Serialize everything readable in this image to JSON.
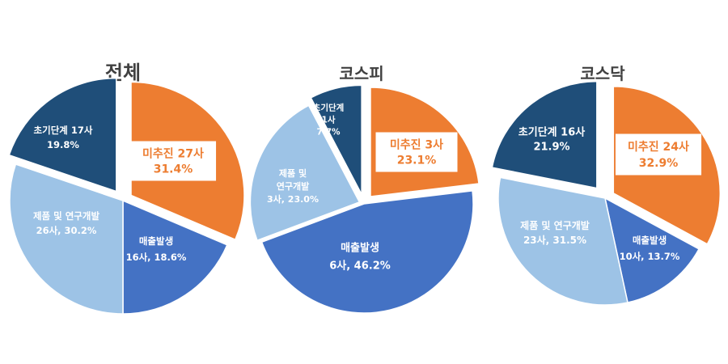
{
  "colors": {
    "미추진": "#ED7D31",
    "매출발생": "#4472C4",
    "제품 및 연구개발": "#9DC3E6",
    "초기단계": "#1F4E79"
  },
  "chart_data": [
    {
      "type": "pie",
      "title": "전체",
      "slices": [
        {
          "name": "미추진",
          "count": 27,
          "percent": 31.4,
          "label_lines": [
            "미추진 27사",
            "31.4%"
          ]
        },
        {
          "name": "매출발생",
          "count": 16,
          "percent": 18.6,
          "label_lines": [
            "매출발생",
            "16사, 18.6%"
          ]
        },
        {
          "name": "제품 및 연구개발",
          "count": 26,
          "percent": 30.2,
          "label_lines": [
            "제품 및 연구개발",
            "26사, 30.2%"
          ]
        },
        {
          "name": "초기단계",
          "count": 17,
          "percent": 19.8,
          "label_lines": [
            "초기단계 17사",
            "19.8%"
          ]
        }
      ]
    },
    {
      "type": "pie",
      "title": "코스피",
      "slices": [
        {
          "name": "미추진",
          "count": 3,
          "percent": 23.1,
          "label_lines": [
            "미추진 3사",
            "23.1%"
          ]
        },
        {
          "name": "매출발생",
          "count": 6,
          "percent": 46.2,
          "label_lines": [
            "매출발생",
            "6사, 46.2%"
          ]
        },
        {
          "name": "제품 및 연구개발",
          "count": 3,
          "percent": 23.0,
          "label_lines": [
            "제품 및",
            "연구개발",
            "3사, 23.0%"
          ]
        },
        {
          "name": "초기단계",
          "count": 1,
          "percent": 7.7,
          "label_lines": [
            "초기단계",
            "1사",
            "7.7%"
          ]
        }
      ]
    },
    {
      "type": "pie",
      "title": "코스닥",
      "slices": [
        {
          "name": "미추진",
          "count": 24,
          "percent": 32.9,
          "label_lines": [
            "미추진 24사",
            "32.9%"
          ]
        },
        {
          "name": "매출발생",
          "count": 10,
          "percent": 13.7,
          "label_lines": [
            "매출발생",
            "10사, 13.7%"
          ]
        },
        {
          "name": "제품 및 연구개발",
          "count": 23,
          "percent": 31.5,
          "label_lines": [
            "제품 및 연구개발",
            "23사, 31.5%"
          ]
        },
        {
          "name": "초기단계",
          "count": 16,
          "percent": 21.9,
          "label_lines": [
            "초기단계 16사",
            "21.9%"
          ]
        }
      ]
    }
  ]
}
